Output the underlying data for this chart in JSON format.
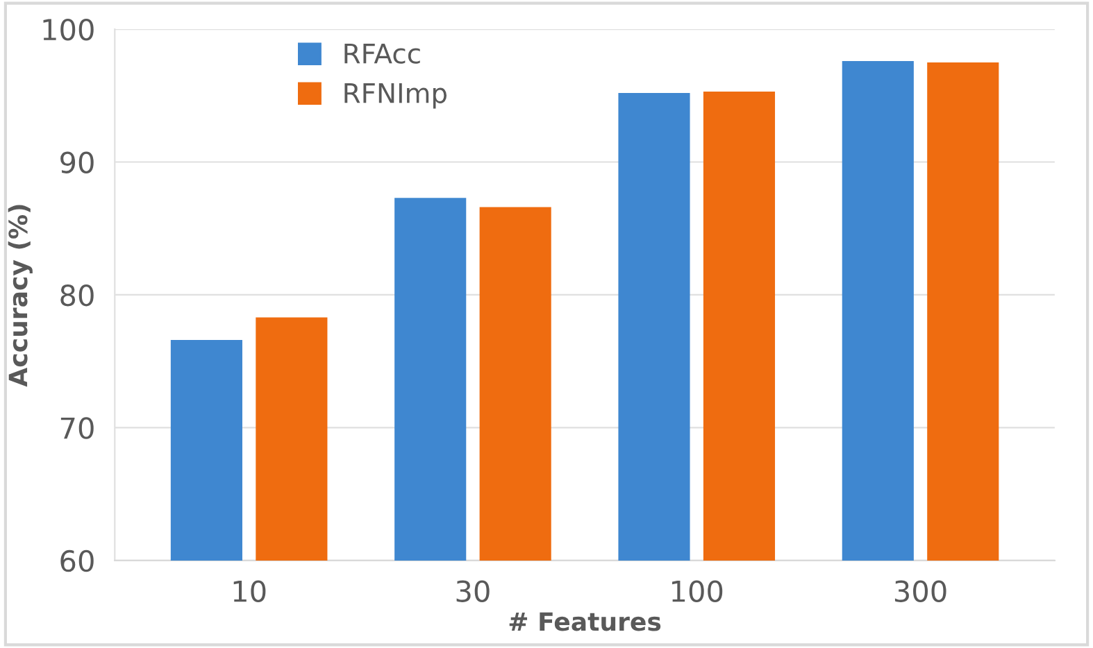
{
  "chart_data": {
    "type": "bar",
    "xlabel": "# Features",
    "ylabel": "Accuracy (%)",
    "categories": [
      "10",
      "30",
      "100",
      "300"
    ],
    "series": [
      {
        "name": "RFAcc",
        "color": "#3f87d0",
        "values": [
          76.6,
          87.3,
          95.2,
          97.6
        ]
      },
      {
        "name": "RFNImp",
        "color": "#ef6c10",
        "values": [
          78.3,
          86.6,
          95.3,
          97.5
        ]
      }
    ],
    "ylim": [
      60,
      100
    ],
    "yticks": [
      60,
      70,
      80,
      90,
      100
    ],
    "grid": "y",
    "legend": "top left"
  }
}
